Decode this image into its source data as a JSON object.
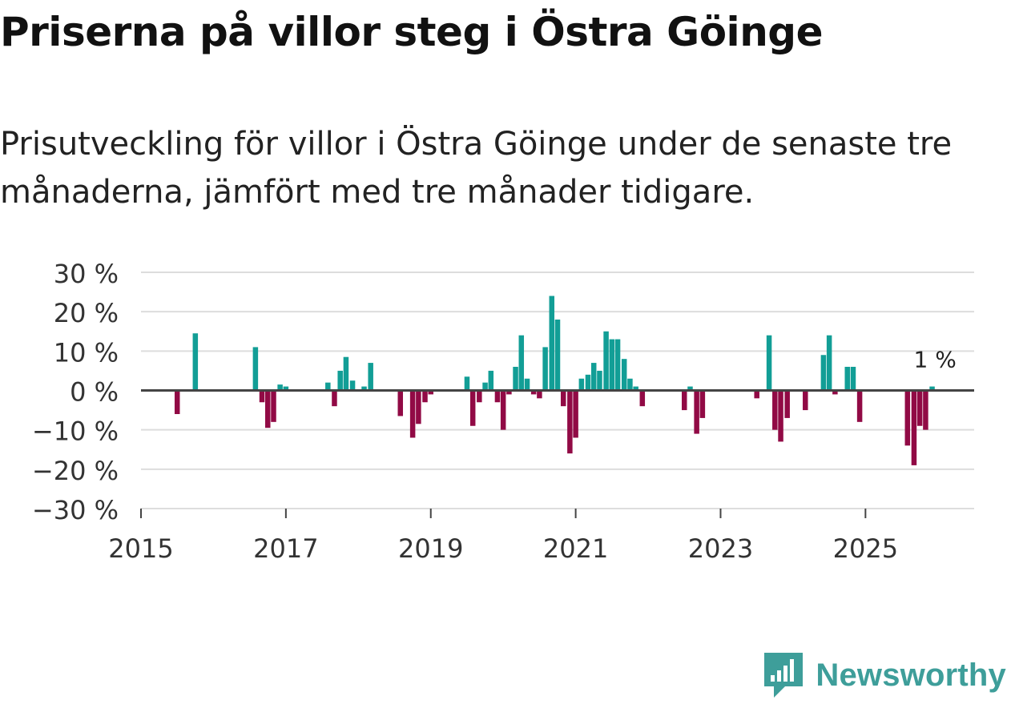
{
  "header": {
    "title": "Priserna på villor steg i Östra Göinge",
    "subtitle": "Prisutveckling för villor i Östra Göinge under de senaste tre månaderna, jämfört med tre månader tidigare."
  },
  "brand": {
    "name": "Newsworthy",
    "logo_icon": "newsworthy-chart-badge-icon"
  },
  "colors": {
    "positive": "#129e96",
    "negative": "#910a45",
    "grid": "#dddddd",
    "zero_line": "#444444",
    "axis_text": "#333333",
    "brand": "#3e9e9a"
  },
  "chart_data": {
    "type": "bar",
    "title": "Priserna på villor steg i Östra Göinge",
    "subtitle": "Prisutveckling för villor i Östra Göinge under de senaste tre månaderna, jämfört med tre månader tidigare.",
    "xlabel": "",
    "ylabel": "",
    "x_unit": "year (monthly bars)",
    "xlim": [
      2015,
      2026.5
    ],
    "ylim": [
      -30,
      30
    ],
    "y_ticks": [
      30,
      20,
      10,
      0,
      -10,
      -20,
      -30
    ],
    "y_tick_labels": [
      "30 %",
      "20 %",
      "10 %",
      "0 %",
      "−10 %",
      "−20 %",
      "−30 %"
    ],
    "x_ticks": [
      2015,
      2017,
      2019,
      2021,
      2023,
      2025
    ],
    "x_tick_labels": [
      "2015",
      "2017",
      "2019",
      "2021",
      "2023",
      "2025"
    ],
    "grid": true,
    "annotation": {
      "x": 2025.96,
      "y": 1,
      "text": "1 %"
    },
    "series": [
      {
        "name": "Prisutveckling",
        "points": [
          {
            "x": 2015.5,
            "y": -6
          },
          {
            "x": 2015.75,
            "y": 14.5
          },
          {
            "x": 2016.58,
            "y": 11
          },
          {
            "x": 2016.67,
            "y": -3
          },
          {
            "x": 2016.75,
            "y": -9.5
          },
          {
            "x": 2016.83,
            "y": -8
          },
          {
            "x": 2016.92,
            "y": 1.5
          },
          {
            "x": 2017.0,
            "y": 1
          },
          {
            "x": 2017.58,
            "y": 2
          },
          {
            "x": 2017.67,
            "y": -4
          },
          {
            "x": 2017.75,
            "y": 5
          },
          {
            "x": 2017.83,
            "y": 8.5
          },
          {
            "x": 2017.92,
            "y": 2.5
          },
          {
            "x": 2018.08,
            "y": 1
          },
          {
            "x": 2018.17,
            "y": 7
          },
          {
            "x": 2018.58,
            "y": -6.5
          },
          {
            "x": 2018.75,
            "y": -12
          },
          {
            "x": 2018.83,
            "y": -8.5
          },
          {
            "x": 2018.92,
            "y": -3
          },
          {
            "x": 2019.0,
            "y": -1
          },
          {
            "x": 2019.5,
            "y": 3.5
          },
          {
            "x": 2019.58,
            "y": -9
          },
          {
            "x": 2019.67,
            "y": -3
          },
          {
            "x": 2019.75,
            "y": 2
          },
          {
            "x": 2019.83,
            "y": 5
          },
          {
            "x": 2019.92,
            "y": -3
          },
          {
            "x": 2020.0,
            "y": -10
          },
          {
            "x": 2020.08,
            "y": -1
          },
          {
            "x": 2020.17,
            "y": 6
          },
          {
            "x": 2020.25,
            "y": 14
          },
          {
            "x": 2020.33,
            "y": 3
          },
          {
            "x": 2020.42,
            "y": -1
          },
          {
            "x": 2020.5,
            "y": -2
          },
          {
            "x": 2020.58,
            "y": 11
          },
          {
            "x": 2020.67,
            "y": 24
          },
          {
            "x": 2020.75,
            "y": 18
          },
          {
            "x": 2020.83,
            "y": -4
          },
          {
            "x": 2020.92,
            "y": -16
          },
          {
            "x": 2021.0,
            "y": -12
          },
          {
            "x": 2021.08,
            "y": 3
          },
          {
            "x": 2021.17,
            "y": 4
          },
          {
            "x": 2021.25,
            "y": 7
          },
          {
            "x": 2021.33,
            "y": 5
          },
          {
            "x": 2021.42,
            "y": 15
          },
          {
            "x": 2021.5,
            "y": 13
          },
          {
            "x": 2021.58,
            "y": 13
          },
          {
            "x": 2021.67,
            "y": 8
          },
          {
            "x": 2021.75,
            "y": 3
          },
          {
            "x": 2021.83,
            "y": 1
          },
          {
            "x": 2021.92,
            "y": -4
          },
          {
            "x": 2022.5,
            "y": -5
          },
          {
            "x": 2022.58,
            "y": 1
          },
          {
            "x": 2022.67,
            "y": -11
          },
          {
            "x": 2022.75,
            "y": -7
          },
          {
            "x": 2023.5,
            "y": -2
          },
          {
            "x": 2023.67,
            "y": 14
          },
          {
            "x": 2023.75,
            "y": -10
          },
          {
            "x": 2023.83,
            "y": -13
          },
          {
            "x": 2023.92,
            "y": -7
          },
          {
            "x": 2024.17,
            "y": -5
          },
          {
            "x": 2024.42,
            "y": 9
          },
          {
            "x": 2024.5,
            "y": 14
          },
          {
            "x": 2024.58,
            "y": -1
          },
          {
            "x": 2024.75,
            "y": 6
          },
          {
            "x": 2024.83,
            "y": 6
          },
          {
            "x": 2024.92,
            "y": -8
          },
          {
            "x": 2025.58,
            "y": -14
          },
          {
            "x": 2025.67,
            "y": -19
          },
          {
            "x": 2025.75,
            "y": -9
          },
          {
            "x": 2025.83,
            "y": -10
          },
          {
            "x": 2025.92,
            "y": 1
          }
        ]
      }
    ]
  }
}
